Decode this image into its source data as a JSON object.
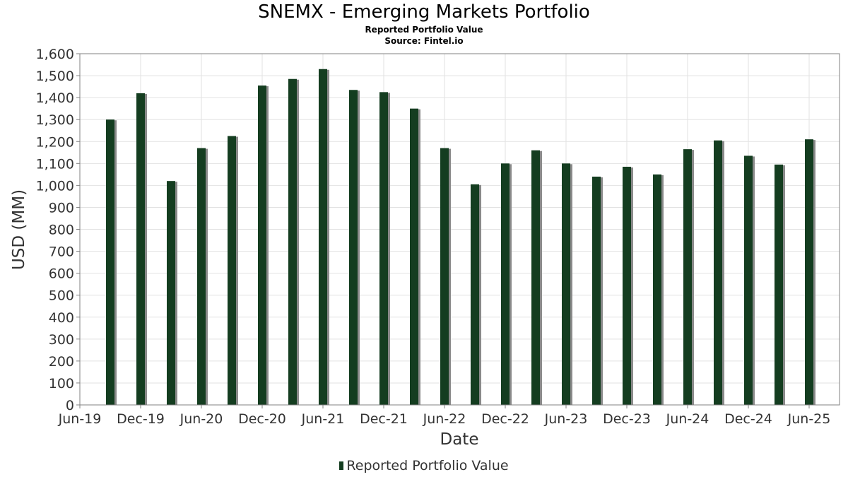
{
  "title": "SNEMX - Emerging Markets Portfolio",
  "subtitle": "Reported Portfolio Value",
  "source": "Source: Fintel.io",
  "colors": {
    "bar": "#143d20",
    "bar_shadow": "#8a8a8a",
    "grid": "#e2e2e2",
    "axis": "#808080"
  },
  "chart_data": {
    "type": "bar",
    "title": "SNEMX - Emerging Markets Portfolio",
    "xlabel": "Date",
    "ylabel": "USD (MM)",
    "ylim": [
      0,
      1600
    ],
    "y_ticks": [
      0,
      100,
      200,
      300,
      400,
      500,
      600,
      700,
      800,
      900,
      1000,
      1100,
      1200,
      1300,
      1400,
      1500,
      1600
    ],
    "x_ticks": [
      "Jun-19",
      "Dec-19",
      "Jun-20",
      "Dec-20",
      "Jun-21",
      "Dec-21",
      "Jun-22",
      "Dec-22",
      "Jun-23",
      "Dec-23",
      "Jun-24",
      "Dec-24",
      "Jun-25"
    ],
    "x_range": [
      "2019-06",
      "2025-09"
    ],
    "grid": true,
    "legend": "bottom-center",
    "series": [
      {
        "name": "Reported Portfolio Value",
        "points": [
          {
            "date": "2019-09",
            "value": 1300
          },
          {
            "date": "2019-12",
            "value": 1420
          },
          {
            "date": "2020-03",
            "value": 1020
          },
          {
            "date": "2020-06",
            "value": 1170
          },
          {
            "date": "2020-09",
            "value": 1225
          },
          {
            "date": "2020-12",
            "value": 1455
          },
          {
            "date": "2021-03",
            "value": 1485
          },
          {
            "date": "2021-06",
            "value": 1530
          },
          {
            "date": "2021-09",
            "value": 1435
          },
          {
            "date": "2021-12",
            "value": 1425
          },
          {
            "date": "2022-03",
            "value": 1350
          },
          {
            "date": "2022-06",
            "value": 1170
          },
          {
            "date": "2022-09",
            "value": 1005
          },
          {
            "date": "2022-12",
            "value": 1100
          },
          {
            "date": "2023-03",
            "value": 1160
          },
          {
            "date": "2023-06",
            "value": 1100
          },
          {
            "date": "2023-09",
            "value": 1040
          },
          {
            "date": "2023-12",
            "value": 1085
          },
          {
            "date": "2024-03",
            "value": 1050
          },
          {
            "date": "2024-06",
            "value": 1165
          },
          {
            "date": "2024-09",
            "value": 1205
          },
          {
            "date": "2024-12",
            "value": 1135
          },
          {
            "date": "2025-03",
            "value": 1095
          },
          {
            "date": "2025-06",
            "value": 1210
          }
        ]
      }
    ]
  }
}
